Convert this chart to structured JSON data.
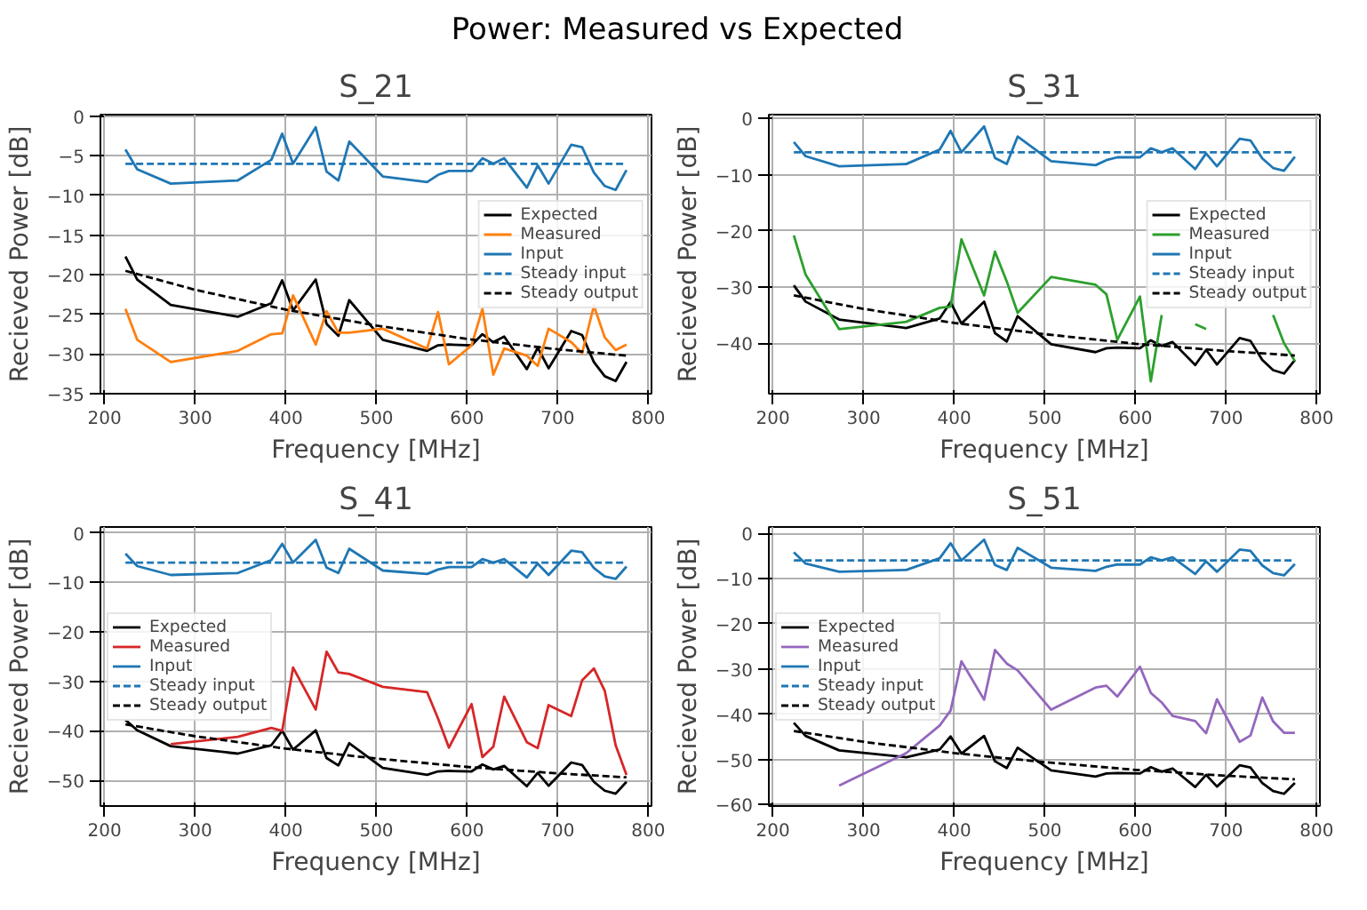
{
  "chart_data": [
    {
      "type": "line",
      "title": "S_21",
      "annotations": [
        "Power: Measured vs Expected"
      ],
      "xlabel": "Frequency [MHz]",
      "ylabel": "Recieved Power [dB]",
      "xlim": [
        195.4,
        803.6
      ],
      "xticks": [
        200,
        300,
        400,
        500,
        600,
        700,
        800
      ],
      "ylim": [
        -35.0,
        0.2
      ],
      "yticks": [
        -35,
        -30,
        -25,
        -20,
        -15,
        -10,
        -5,
        0
      ],
      "grid": true,
      "legend": "right",
      "x": [
        223,
        236,
        273,
        347,
        384,
        396,
        408,
        433,
        445,
        458,
        470,
        507,
        556,
        568,
        580,
        605,
        617,
        629,
        641,
        666,
        678,
        690,
        715,
        727,
        740,
        752,
        764,
        776
      ],
      "series": [
        {
          "name": "Expected",
          "color": "#000000",
          "line_style": "solid",
          "values": [
            -17.7,
            -20.6,
            -23.8,
            -25.3,
            -23.6,
            -20.7,
            -24.5,
            -20.6,
            -26.2,
            -27.7,
            -23.2,
            -28.2,
            -29.6,
            -28.9,
            -28.8,
            -28.9,
            -27.5,
            -28.5,
            -27.8,
            -31.9,
            -29.2,
            -31.8,
            -27.1,
            -27.6,
            -31.0,
            -32.8,
            -33.4,
            -31.0
          ]
        },
        {
          "name": "Measured",
          "color": "#ff7f0e",
          "line_style": "solid",
          "values": [
            -24.3,
            -28.2,
            -31.0,
            -29.6,
            -27.5,
            -27.4,
            -22.6,
            -28.8,
            -24.6,
            -27.3,
            -27.3,
            -26.8,
            -29.3,
            -24.7,
            -31.3,
            -28.9,
            -24.3,
            -32.6,
            -29.3,
            -30.2,
            -31.5,
            -26.8,
            -28.5,
            -29.9,
            -23.9,
            -27.9,
            -29.5,
            -28.8
          ]
        },
        {
          "name": "Input",
          "color": "#1f77b4",
          "line_style": "solid",
          "values": [
            -4.2,
            -6.7,
            -8.5,
            -8.1,
            -5.5,
            -2.2,
            -6.0,
            -1.4,
            -7.0,
            -8.1,
            -3.2,
            -7.6,
            -8.3,
            -7.4,
            -6.9,
            -6.9,
            -5.3,
            -6.0,
            -5.3,
            -9.0,
            -6.2,
            -8.5,
            -3.6,
            -3.9,
            -7.1,
            -8.8,
            -9.3,
            -6.8
          ]
        },
        {
          "name": "Steady input",
          "color": "#1f77b4",
          "line_style": "dashed",
          "x": [
            223,
            776
          ],
          "values": [
            -6,
            -6
          ]
        },
        {
          "name": "Steady output",
          "color": "#000000",
          "line_style": "dashed",
          "x": [
            223,
            300,
            400,
            500,
            600,
            700,
            776
          ],
          "values": [
            -19.5,
            -21.9,
            -24.4,
            -26.4,
            -28.1,
            -29.4,
            -30.2
          ]
        }
      ]
    },
    {
      "type": "line",
      "title": "S_31",
      "xlabel": "Frequency [MHz]",
      "ylabel": "Recieved Power [dB]",
      "xlim": [
        195.4,
        803.6
      ],
      "xticks": [
        200,
        300,
        400,
        500,
        600,
        700,
        800
      ],
      "ylim": [
        -49.0,
        0.7
      ],
      "yticks": [
        -40,
        -30,
        -20,
        -10,
        0
      ],
      "grid": true,
      "legend": "right",
      "x": [
        223,
        236,
        273,
        347,
        384,
        396,
        408,
        433,
        445,
        458,
        470,
        507,
        556,
        568,
        580,
        605,
        617,
        629,
        641,
        666,
        678,
        690,
        715,
        727,
        740,
        752,
        764,
        776
      ],
      "series": [
        {
          "name": "Expected",
          "color": "#000000",
          "line_style": "solid",
          "values": [
            -29.7,
            -32.6,
            -35.8,
            -37.3,
            -35.6,
            -32.7,
            -36.5,
            -32.6,
            -38.2,
            -39.7,
            -35.2,
            -40.2,
            -41.6,
            -40.9,
            -40.8,
            -40.9,
            -39.5,
            -40.5,
            -39.8,
            -43.9,
            -41.2,
            -43.8,
            -39.1,
            -39.6,
            -43.0,
            -44.8,
            -45.4,
            -43.0
          ]
        },
        {
          "name": "Measured",
          "color": "#2ca02c",
          "line_style": "solid",
          "values": [
            -20.8,
            -27.8,
            -37.5,
            -36.2,
            -33.7,
            -33.5,
            -21.5,
            -31.5,
            -23.7,
            -29.0,
            -34.6,
            -28.2,
            -29.6,
            -31.3,
            -39.4,
            -31.7,
            -46.8,
            -35.0,
            null,
            -36.6,
            -37.5,
            null,
            null,
            null,
            null,
            -35.0,
            -40.0,
            -43.2
          ]
        },
        {
          "name": "Input",
          "color": "#1f77b4",
          "line_style": "solid",
          "values": [
            -4.2,
            -6.7,
            -8.5,
            -8.1,
            -5.5,
            -2.2,
            -6.0,
            -1.4,
            -7.0,
            -8.1,
            -3.2,
            -7.6,
            -8.3,
            -7.4,
            -6.9,
            -6.9,
            -5.3,
            -6.0,
            -5.3,
            -9.0,
            -6.2,
            -8.5,
            -3.6,
            -3.9,
            -7.1,
            -8.8,
            -9.3,
            -6.8
          ]
        },
        {
          "name": "Steady input",
          "color": "#1f77b4",
          "line_style": "dashed",
          "x": [
            223,
            776
          ],
          "values": [
            -6,
            -6
          ]
        },
        {
          "name": "Steady output",
          "color": "#000000",
          "line_style": "dashed",
          "x": [
            223,
            300,
            400,
            500,
            600,
            700,
            776
          ],
          "values": [
            -31.5,
            -33.9,
            -36.4,
            -38.4,
            -40.1,
            -41.4,
            -42.2
          ]
        }
      ]
    },
    {
      "type": "line",
      "title": "S_41",
      "xlabel": "Frequency [MHz]",
      "ylabel": "Recieved Power [dB]",
      "xlim": [
        195.4,
        803.6
      ],
      "xticks": [
        200,
        300,
        400,
        500,
        600,
        700,
        800
      ],
      "ylim": [
        -55.2,
        1.2
      ],
      "yticks": [
        -50,
        -40,
        -30,
        -20,
        -10,
        0
      ],
      "grid": true,
      "legend": "left",
      "x": [
        223,
        236,
        273,
        347,
        384,
        396,
        408,
        433,
        445,
        458,
        470,
        507,
        556,
        568,
        580,
        605,
        617,
        629,
        641,
        666,
        678,
        690,
        715,
        727,
        740,
        752,
        764,
        776
      ],
      "series": [
        {
          "name": "Expected",
          "color": "#000000",
          "line_style": "solid",
          "values": [
            -37.8,
            -39.9,
            -43.1,
            -44.6,
            -42.9,
            -40.0,
            -43.8,
            -39.9,
            -45.5,
            -47.0,
            -42.5,
            -47.5,
            -48.9,
            -48.2,
            -48.1,
            -48.2,
            -46.8,
            -47.8,
            -47.1,
            -51.2,
            -48.5,
            -51.1,
            -46.4,
            -46.9,
            -50.3,
            -52.1,
            -52.7,
            -50.3
          ]
        },
        {
          "name": "Measured",
          "color": "#d62728",
          "line_style": "solid",
          "values": [
            null,
            null,
            -42.7,
            -41.2,
            -39.4,
            -40.0,
            -27.2,
            -35.7,
            -24.0,
            -28.2,
            -28.5,
            -31.1,
            -32.2,
            -37.5,
            -43.4,
            -34.6,
            -45.3,
            -43.2,
            -33.1,
            -42.3,
            -43.5,
            -34.8,
            -37.0,
            -29.8,
            -27.4,
            -31.9,
            -42.9,
            -48.9
          ]
        },
        {
          "name": "Input",
          "color": "#1f77b4",
          "line_style": "solid",
          "values": [
            -4.2,
            -6.7,
            -8.5,
            -8.1,
            -5.5,
            -2.2,
            -6.0,
            -1.4,
            -7.0,
            -8.1,
            -3.2,
            -7.6,
            -8.3,
            -7.4,
            -6.9,
            -6.9,
            -5.3,
            -6.0,
            -5.3,
            -9.0,
            -6.2,
            -8.5,
            -3.6,
            -3.9,
            -7.1,
            -8.8,
            -9.3,
            -6.8
          ]
        },
        {
          "name": "Steady input",
          "color": "#1f77b4",
          "line_style": "dashed",
          "x": [
            223,
            776
          ],
          "values": [
            -6,
            -6
          ]
        },
        {
          "name": "Steady output",
          "color": "#000000",
          "line_style": "dashed",
          "x": [
            223,
            300,
            400,
            500,
            600,
            700,
            776
          ],
          "values": [
            -38.7,
            -41.1,
            -43.6,
            -45.6,
            -47.3,
            -48.6,
            -49.4
          ]
        }
      ]
    },
    {
      "type": "line",
      "title": "S_51",
      "xlabel": "Frequency [MHz]",
      "ylabel": "Recieved Power [dB]",
      "xlim": [
        195.4,
        803.6
      ],
      "xticks": [
        200,
        300,
        400,
        500,
        600,
        700,
        800
      ],
      "ylim": [
        -60.3,
        1.4
      ],
      "yticks": [
        -60,
        -50,
        -40,
        -30,
        -20,
        -10,
        0
      ],
      "grid": true,
      "legend": "left",
      "x": [
        223,
        236,
        273,
        347,
        384,
        396,
        408,
        433,
        445,
        458,
        470,
        507,
        556,
        568,
        580,
        605,
        617,
        629,
        641,
        666,
        678,
        690,
        715,
        727,
        740,
        752,
        764,
        776
      ],
      "series": [
        {
          "name": "Expected",
          "color": "#000000",
          "line_style": "solid",
          "values": [
            -41.9,
            -44.8,
            -48.0,
            -49.5,
            -47.8,
            -44.9,
            -48.7,
            -44.8,
            -50.4,
            -51.9,
            -47.4,
            -52.4,
            -53.8,
            -53.1,
            -53.0,
            -53.1,
            -51.7,
            -52.7,
            -52.0,
            -56.1,
            -53.4,
            -56.0,
            -51.3,
            -51.8,
            -55.2,
            -57.0,
            -57.6,
            -55.2
          ]
        },
        {
          "name": "Measured",
          "color": "#9467bd",
          "line_style": "solid",
          "values": [
            null,
            null,
            -55.8,
            -48.6,
            -42.5,
            -39.2,
            -28.3,
            -36.8,
            -25.8,
            -28.8,
            -30.3,
            -39.0,
            -34.1,
            -33.7,
            -36.1,
            -29.5,
            -35.3,
            -37.4,
            -40.4,
            -41.5,
            -44.2,
            -36.7,
            -46.1,
            -44.7,
            -36.3,
            -41.6,
            -44.1,
            -44.1
          ]
        },
        {
          "name": "Input",
          "color": "#1f77b4",
          "line_style": "solid",
          "values": [
            -4.2,
            -6.7,
            -8.5,
            -8.1,
            -5.5,
            -2.2,
            -6.0,
            -1.4,
            -7.0,
            -8.1,
            -3.2,
            -7.6,
            -8.3,
            -7.4,
            -6.9,
            -6.9,
            -5.3,
            -6.0,
            -5.3,
            -9.0,
            -6.2,
            -8.5,
            -3.6,
            -3.9,
            -7.1,
            -8.8,
            -9.3,
            -6.8
          ]
        },
        {
          "name": "Steady input",
          "color": "#1f77b4",
          "line_style": "dashed",
          "x": [
            223,
            776
          ],
          "values": [
            -6,
            -6
          ]
        },
        {
          "name": "Steady output",
          "color": "#000000",
          "line_style": "dashed",
          "x": [
            223,
            300,
            400,
            500,
            600,
            700,
            776
          ],
          "values": [
            -43.7,
            -46.1,
            -48.6,
            -50.6,
            -52.3,
            -53.6,
            -54.4
          ]
        }
      ]
    }
  ]
}
